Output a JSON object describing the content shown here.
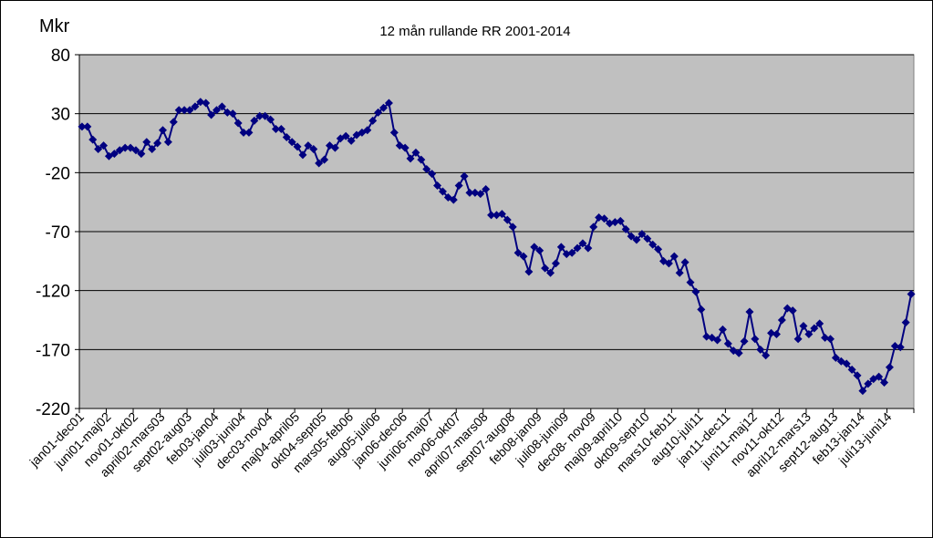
{
  "chart_data": {
    "type": "line",
    "title": "12 mån rullande RR 2001-2014",
    "ylabel": "Mkr",
    "xlabel": "",
    "ylim": [
      -220,
      80
    ],
    "yticks": [
      80,
      30,
      -20,
      -70,
      -120,
      -170,
      -220
    ],
    "grid": true,
    "legend": "none",
    "colors": {
      "series": "#000080",
      "plot_background": "#c0c0c0",
      "grid": "#000000"
    },
    "x_tick_labels": [
      "jan01-dec01",
      "juni01-maj02",
      "nov01-okt02",
      "april02-mars03",
      "sept02-aug03",
      "feb03-jan04",
      "juli03-juni04",
      "dec03-nov04",
      "maj04-april05",
      "okt04-sept05",
      "mars05-feb06",
      "aug05-juli06",
      "jan06-dec06",
      "juni06-maj07",
      "nov06-okt07",
      "april07-mars08",
      "sept07-aug08",
      "feb08-jan09",
      "juli08-juni09",
      "dec08- nov09",
      "maj09-april10",
      "okt09-sept10",
      "mars10-feb11",
      "aug10-juli11",
      "jan11-dec11",
      "juni11-maj12",
      "nov11-okt12",
      "april12-mars13",
      "sept12-aug13",
      "feb13-jan14",
      "juli13-juni14"
    ],
    "series": [
      {
        "values": [
          19,
          19,
          8,
          0,
          3,
          -6,
          -4,
          -1,
          1,
          1,
          -1,
          -4,
          6,
          0,
          5,
          16,
          6,
          23,
          33,
          33,
          33,
          36,
          40,
          39,
          29,
          33,
          36,
          31,
          30,
          22,
          14,
          14,
          24,
          28,
          28,
          25,
          17,
          17,
          10,
          6,
          2,
          -5,
          3,
          0,
          -12,
          -9,
          3,
          1,
          9,
          11,
          7,
          12,
          14,
          16,
          24,
          31,
          35,
          39,
          14,
          3,
          1,
          -8,
          -3,
          -9,
          -17,
          -21,
          -31,
          -36,
          -41,
          -43,
          -31,
          -23,
          -37,
          -37,
          -38,
          -34,
          -56,
          -56,
          -55,
          -60,
          -66,
          -88,
          -91,
          -104,
          -83,
          -86,
          -101,
          -105,
          -97,
          -83,
          -89,
          -88,
          -84,
          -80,
          -84,
          -66,
          -58,
          -59,
          -63,
          -62,
          -61,
          -68,
          -74,
          -77,
          -72,
          -76,
          -81,
          -85,
          -95,
          -97,
          -91,
          -105,
          -96,
          -113,
          -121,
          -136,
          -159,
          -160,
          -162,
          -153,
          -165,
          -171,
          -173,
          -163,
          -138,
          -161,
          -170,
          -175,
          -156,
          -157,
          -145,
          -135,
          -137,
          -161,
          -150,
          -157,
          -152,
          -148,
          -160,
          -161,
          -177,
          -180,
          -182,
          -187,
          -192,
          -205,
          -199,
          -195,
          -193,
          -198,
          -185,
          -167,
          -168,
          -147,
          -123
        ]
      }
    ]
  }
}
